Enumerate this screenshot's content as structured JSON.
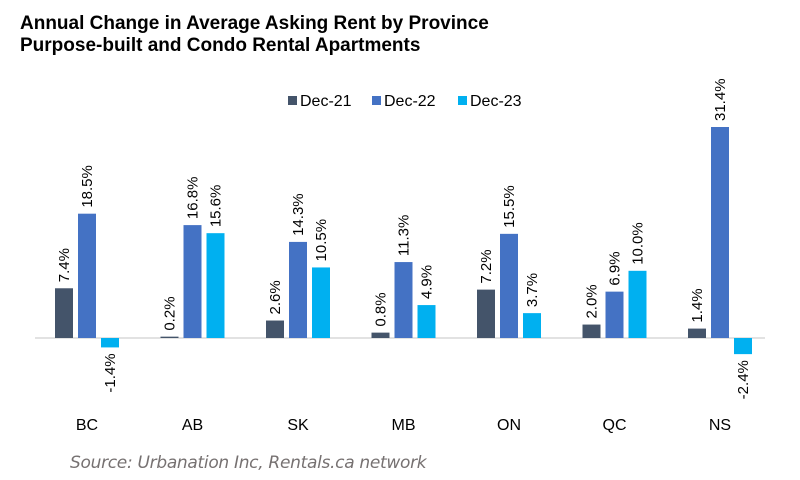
{
  "chart_data": {
    "type": "bar",
    "title": "Annual Change in Average Asking Rent by Province",
    "subtitle": "Purpose-built and Condo Rental Apartments",
    "xlabel": "",
    "ylabel": "",
    "categories": [
      "BC",
      "AB",
      "SK",
      "MB",
      "ON",
      "QC",
      "NS"
    ],
    "series": [
      {
        "name": "Dec-21",
        "color": "#44546A",
        "values": [
          7.4,
          0.2,
          2.6,
          0.8,
          7.2,
          2.0,
          1.4
        ],
        "labels": [
          "7.4%",
          "0.2%",
          "2.6%",
          "0.8%",
          "7.2%",
          "2.0%",
          "1.4%"
        ]
      },
      {
        "name": "Dec-22",
        "color": "#4472C4",
        "values": [
          18.5,
          16.8,
          14.3,
          11.3,
          15.5,
          6.9,
          31.4
        ],
        "labels": [
          "18.5%",
          "16.8%",
          "14.3%",
          "11.3%",
          "15.5%",
          "6.9%",
          "31.4%"
        ]
      },
      {
        "name": "Dec-23",
        "color": "#00B0F0",
        "values": [
          -1.4,
          15.6,
          10.5,
          4.9,
          3.7,
          10.0,
          -2.4
        ],
        "labels": [
          "-1.4%",
          "15.6%",
          "10.5%",
          "4.9%",
          "3.7%",
          "10.0%",
          "-2.4%"
        ]
      }
    ],
    "ylim": [
      -4,
      32
    ],
    "grid": false,
    "legend": "top-center",
    "data_labels": true
  },
  "source": "Source: Urbanation Inc, Rentals.ca network"
}
